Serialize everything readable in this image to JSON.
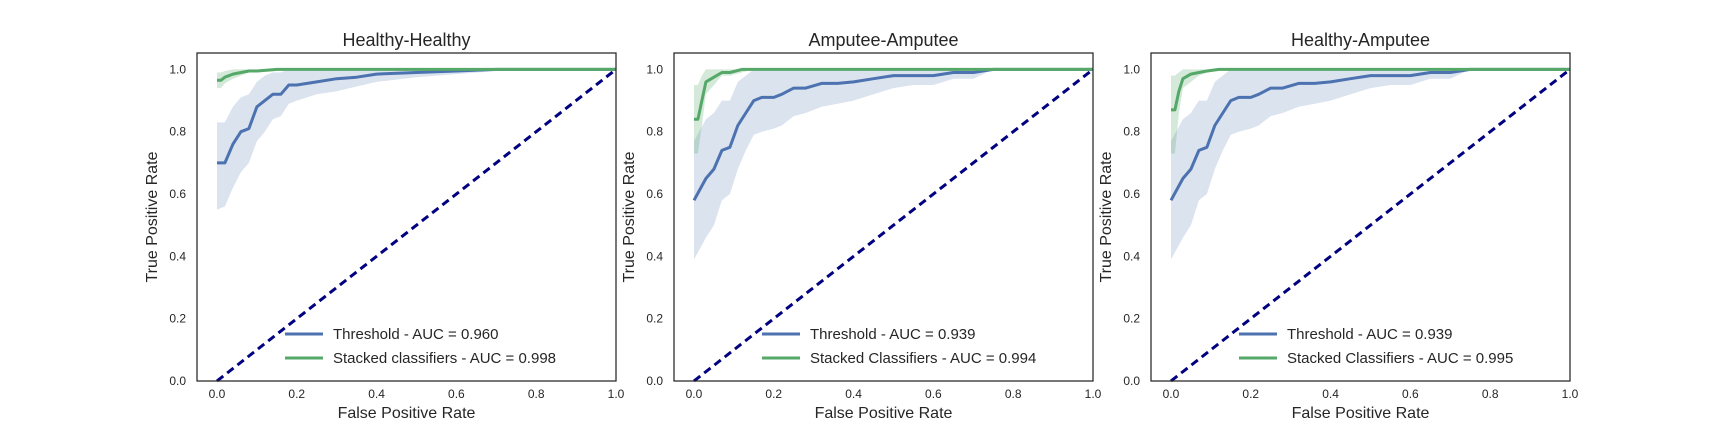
{
  "figure": {
    "background": "#ffffff"
  },
  "chart_data": [
    {
      "type": "line",
      "title": "Healthy-Healthy",
      "xlabel": "False Positive Rate",
      "ylabel": "True Positive Rate",
      "xlim": [
        0.0,
        1.0
      ],
      "ylim": [
        0.0,
        1.0
      ],
      "xticks": [
        "0.0",
        "0.2",
        "0.4",
        "0.6",
        "0.8",
        "1.0"
      ],
      "yticks": [
        "0.0",
        "0.2",
        "0.4",
        "0.6",
        "0.8",
        "1.0"
      ],
      "grid": false,
      "legend_position": "lower-right",
      "diagonal": {
        "x": [
          0,
          1
        ],
        "y": [
          0,
          1
        ],
        "color": "#000080",
        "style": "dashed"
      },
      "series": [
        {
          "name": "Threshold - AUC = 0.960",
          "color": "#4c72b0",
          "x": [
            0,
            0.02,
            0.04,
            0.06,
            0.08,
            0.1,
            0.12,
            0.14,
            0.16,
            0.18,
            0.2,
            0.25,
            0.3,
            0.35,
            0.4,
            0.5,
            0.6,
            0.7,
            0.8,
            0.9,
            1.0
          ],
          "y": [
            0.7,
            0.7,
            0.76,
            0.8,
            0.81,
            0.88,
            0.9,
            0.92,
            0.92,
            0.95,
            0.95,
            0.96,
            0.97,
            0.975,
            0.985,
            0.99,
            0.995,
            1.0,
            1.0,
            1.0,
            1.0
          ],
          "band_lower": [
            0.55,
            0.56,
            0.62,
            0.67,
            0.7,
            0.77,
            0.8,
            0.84,
            0.85,
            0.89,
            0.9,
            0.92,
            0.93,
            0.945,
            0.96,
            0.975,
            0.985,
            0.995,
            1.0,
            1.0,
            1.0
          ],
          "band_upper": [
            0.83,
            0.83,
            0.88,
            0.91,
            0.92,
            0.96,
            0.98,
            0.99,
            0.99,
            1.0,
            1.0,
            1.0,
            1.0,
            1.0,
            1.0,
            1.0,
            1.0,
            1.0,
            1.0,
            1.0,
            1.0
          ]
        },
        {
          "name": "Stacked classifiers - AUC = 0.998",
          "color": "#55a868",
          "x": [
            0,
            0.01,
            0.02,
            0.04,
            0.06,
            0.08,
            0.1,
            0.15,
            0.2,
            0.3,
            0.5,
            0.7,
            1.0
          ],
          "y": [
            0.965,
            0.965,
            0.975,
            0.985,
            0.99,
            0.995,
            0.995,
            1.0,
            1.0,
            1.0,
            1.0,
            1.0,
            1.0
          ],
          "band_lower": [
            0.94,
            0.94,
            0.955,
            0.97,
            0.98,
            0.99,
            0.99,
            0.995,
            1.0,
            1.0,
            1.0,
            1.0,
            1.0
          ],
          "band_upper": [
            0.99,
            0.99,
            0.995,
            1.0,
            1.0,
            1.0,
            1.0,
            1.0,
            1.0,
            1.0,
            1.0,
            1.0,
            1.0
          ]
        }
      ]
    },
    {
      "type": "line",
      "title": "Amputee-Amputee",
      "xlabel": "False Positive Rate",
      "ylabel": "True Positive Rate",
      "xlim": [
        0.0,
        1.0
      ],
      "ylim": [
        0.0,
        1.0
      ],
      "xticks": [
        "0.0",
        "0.2",
        "0.4",
        "0.6",
        "0.8",
        "1.0"
      ],
      "yticks": [
        "0.0",
        "0.2",
        "0.4",
        "0.6",
        "0.8",
        "1.0"
      ],
      "grid": false,
      "legend_position": "lower-right",
      "diagonal": {
        "x": [
          0,
          1
        ],
        "y": [
          0,
          1
        ],
        "color": "#000080",
        "style": "dashed"
      },
      "series": [
        {
          "name": "Threshold - AUC = 0.939",
          "color": "#4c72b0",
          "x": [
            0,
            0.03,
            0.05,
            0.07,
            0.09,
            0.11,
            0.13,
            0.15,
            0.17,
            0.2,
            0.22,
            0.25,
            0.28,
            0.32,
            0.36,
            0.4,
            0.45,
            0.5,
            0.55,
            0.6,
            0.65,
            0.7,
            0.75,
            0.8,
            1.0
          ],
          "y": [
            0.58,
            0.65,
            0.68,
            0.74,
            0.75,
            0.82,
            0.86,
            0.9,
            0.91,
            0.91,
            0.92,
            0.94,
            0.94,
            0.955,
            0.955,
            0.96,
            0.97,
            0.98,
            0.98,
            0.98,
            0.99,
            0.99,
            1.0,
            1.0,
            1.0
          ],
          "band_lower": [
            0.39,
            0.46,
            0.5,
            0.58,
            0.6,
            0.68,
            0.74,
            0.79,
            0.8,
            0.81,
            0.82,
            0.85,
            0.86,
            0.88,
            0.89,
            0.9,
            0.92,
            0.94,
            0.95,
            0.95,
            0.97,
            0.97,
            1.0,
            1.0,
            1.0
          ],
          "band_upper": [
            0.77,
            0.84,
            0.86,
            0.9,
            0.9,
            0.96,
            0.98,
            1.0,
            1.0,
            1.0,
            1.0,
            1.0,
            1.0,
            1.0,
            1.0,
            1.0,
            1.0,
            1.0,
            1.0,
            1.0,
            1.0,
            1.0,
            1.0,
            1.0,
            1.0
          ]
        },
        {
          "name": "Stacked Classifiers - AUC = 0.994",
          "color": "#55a868",
          "x": [
            0,
            0.01,
            0.02,
            0.03,
            0.05,
            0.07,
            0.09,
            0.12,
            0.15,
            0.2,
            0.3,
            0.5,
            0.7,
            1.0
          ],
          "y": [
            0.84,
            0.84,
            0.9,
            0.96,
            0.975,
            0.99,
            0.99,
            1.0,
            1.0,
            1.0,
            1.0,
            1.0,
            1.0,
            1.0
          ],
          "band_lower": [
            0.73,
            0.73,
            0.82,
            0.92,
            0.95,
            0.98,
            0.98,
            0.99,
            1.0,
            1.0,
            1.0,
            1.0,
            1.0,
            1.0
          ],
          "band_upper": [
            0.95,
            0.95,
            0.98,
            1.0,
            1.0,
            1.0,
            1.0,
            1.0,
            1.0,
            1.0,
            1.0,
            1.0,
            1.0,
            1.0
          ]
        }
      ]
    },
    {
      "type": "line",
      "title": "Healthy-Amputee",
      "xlabel": "False Positive Rate",
      "ylabel": "True Positive Rate",
      "xlim": [
        0.0,
        1.0
      ],
      "ylim": [
        0.0,
        1.0
      ],
      "xticks": [
        "0.0",
        "0.2",
        "0.4",
        "0.6",
        "0.8",
        "1.0"
      ],
      "yticks": [
        "0.0",
        "0.2",
        "0.4",
        "0.6",
        "0.8",
        "1.0"
      ],
      "grid": false,
      "legend_position": "lower-right",
      "diagonal": {
        "x": [
          0,
          1
        ],
        "y": [
          0,
          1
        ],
        "color": "#000080",
        "style": "dashed"
      },
      "series": [
        {
          "name": "Threshold - AUC = 0.939",
          "color": "#4c72b0",
          "x": [
            0,
            0.03,
            0.05,
            0.07,
            0.09,
            0.11,
            0.13,
            0.15,
            0.17,
            0.2,
            0.22,
            0.25,
            0.28,
            0.32,
            0.36,
            0.4,
            0.45,
            0.5,
            0.55,
            0.6,
            0.65,
            0.7,
            0.75,
            0.8,
            1.0
          ],
          "y": [
            0.58,
            0.65,
            0.68,
            0.74,
            0.75,
            0.82,
            0.86,
            0.9,
            0.91,
            0.91,
            0.92,
            0.94,
            0.94,
            0.955,
            0.955,
            0.96,
            0.97,
            0.98,
            0.98,
            0.98,
            0.99,
            0.99,
            1.0,
            1.0,
            1.0
          ],
          "band_lower": [
            0.39,
            0.46,
            0.5,
            0.58,
            0.6,
            0.68,
            0.74,
            0.79,
            0.8,
            0.81,
            0.82,
            0.85,
            0.86,
            0.88,
            0.89,
            0.9,
            0.92,
            0.94,
            0.95,
            0.95,
            0.97,
            0.97,
            1.0,
            1.0,
            1.0
          ],
          "band_upper": [
            0.77,
            0.84,
            0.86,
            0.9,
            0.9,
            0.96,
            0.98,
            1.0,
            1.0,
            1.0,
            1.0,
            1.0,
            1.0,
            1.0,
            1.0,
            1.0,
            1.0,
            1.0,
            1.0,
            1.0,
            1.0,
            1.0,
            1.0,
            1.0,
            1.0
          ]
        },
        {
          "name": "Stacked Classifiers - AUC = 0.995",
          "color": "#55a868",
          "x": [
            0,
            0.01,
            0.02,
            0.03,
            0.05,
            0.07,
            0.09,
            0.12,
            0.15,
            0.2,
            0.3,
            0.5,
            0.7,
            1.0
          ],
          "y": [
            0.87,
            0.87,
            0.93,
            0.97,
            0.985,
            0.99,
            0.995,
            1.0,
            1.0,
            1.0,
            1.0,
            1.0,
            1.0,
            1.0
          ],
          "band_lower": [
            0.73,
            0.73,
            0.86,
            0.94,
            0.96,
            0.98,
            0.99,
            0.995,
            1.0,
            1.0,
            1.0,
            1.0,
            1.0,
            1.0
          ],
          "band_upper": [
            0.98,
            0.98,
            0.99,
            1.0,
            1.0,
            1.0,
            1.0,
            1.0,
            1.0,
            1.0,
            1.0,
            1.0,
            1.0,
            1.0
          ]
        }
      ]
    }
  ]
}
